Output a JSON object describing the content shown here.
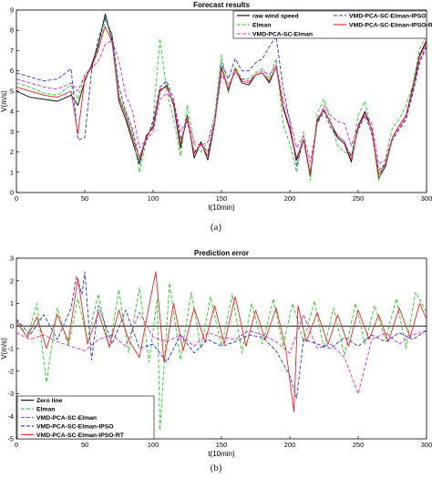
{
  "chart_data": [
    {
      "type": "line",
      "title": "Forecast results",
      "xlabel": "t(10min)",
      "ylabel": "V(m/s)",
      "xlim": [
        0,
        300
      ],
      "ylim": [
        0,
        9
      ],
      "xticks": [
        "0",
        "50",
        "100",
        "150",
        "200",
        "250",
        "300"
      ],
      "yticks": [
        "0",
        "1",
        "2",
        "3",
        "4",
        "5",
        "6",
        "7",
        "8",
        "9"
      ],
      "grid": false,
      "legend": "top-right",
      "series": [
        {
          "name": "raw wind speed",
          "color": "#000000",
          "dash": "solid",
          "x": [
            0,
            10,
            20,
            30,
            40,
            45,
            50,
            55,
            60,
            65,
            70,
            75,
            80,
            85,
            90,
            95,
            100,
            105,
            110,
            115,
            120,
            125,
            130,
            135,
            140,
            145,
            150,
            155,
            160,
            165,
            170,
            175,
            180,
            185,
            190,
            195,
            200,
            205,
            210,
            215,
            220,
            225,
            230,
            235,
            240,
            245,
            250,
            255,
            260,
            265,
            270,
            275,
            280,
            285,
            290,
            295,
            300
          ],
          "values": [
            5.0,
            4.7,
            4.6,
            4.5,
            4.8,
            4.3,
            5.5,
            6.3,
            7.3,
            8.8,
            7.5,
            4.5,
            3.6,
            2.5,
            1.4,
            2.8,
            3.2,
            5.0,
            5.3,
            4.3,
            2.2,
            3.8,
            1.7,
            2.5,
            1.6,
            3.4,
            6.2,
            5.0,
            6.1,
            5.4,
            5.3,
            5.8,
            5.9,
            5.4,
            6.2,
            4.2,
            3.1,
            1.6,
            2.6,
            0.8,
            3.6,
            4.1,
            3.4,
            2.7,
            2.4,
            1.5,
            3.3,
            4.0,
            3.1,
            0.7,
            1.3,
            2.7,
            3.3,
            3.8,
            5.2,
            6.8,
            7.5
          ]
        },
        {
          "name": "Elman",
          "color": "#22cc22",
          "dash": "4,2",
          "x": [
            0,
            10,
            20,
            30,
            40,
            45,
            50,
            55,
            60,
            65,
            70,
            75,
            80,
            85,
            90,
            95,
            100,
            105,
            110,
            115,
            120,
            125,
            130,
            135,
            140,
            145,
            150,
            155,
            160,
            165,
            170,
            175,
            180,
            185,
            190,
            195,
            200,
            205,
            210,
            215,
            220,
            225,
            230,
            235,
            240,
            245,
            250,
            255,
            260,
            265,
            270,
            275,
            280,
            285,
            290,
            295,
            300
          ],
          "values": [
            5.4,
            5.2,
            4.9,
            4.8,
            5.3,
            4.6,
            5.8,
            6.2,
            7.0,
            8.5,
            7.8,
            4.8,
            3.9,
            2.9,
            1.0,
            2.5,
            3.6,
            7.6,
            5.0,
            3.6,
            1.8,
            4.3,
            2.4,
            2.0,
            2.5,
            3.8,
            6.8,
            4.9,
            6.2,
            5.6,
            5.6,
            5.9,
            6.1,
            5.6,
            6.6,
            3.4,
            2.4,
            1.0,
            3.0,
            0.6,
            3.9,
            4.6,
            3.5,
            2.3,
            2.0,
            1.8,
            3.8,
            4.5,
            3.0,
            0.6,
            1.7,
            3.2,
            3.6,
            4.3,
            5.3,
            7.1,
            7.7
          ]
        },
        {
          "name": "VMD-PCA-SC-Elman",
          "color": "#dd22dd",
          "dash": "4,2",
          "x": [
            0,
            10,
            20,
            30,
            40,
            45,
            50,
            55,
            60,
            65,
            70,
            75,
            80,
            85,
            90,
            95,
            100,
            105,
            110,
            115,
            120,
            125,
            130,
            135,
            140,
            145,
            150,
            155,
            160,
            165,
            170,
            175,
            180,
            185,
            190,
            195,
            200,
            205,
            210,
            215,
            220,
            225,
            230,
            235,
            240,
            245,
            250,
            255,
            260,
            265,
            270,
            275,
            280,
            285,
            290,
            295,
            300
          ],
          "values": [
            5.6,
            5.4,
            5.2,
            5.1,
            5.4,
            5.0,
            5.8,
            6.1,
            6.5,
            7.3,
            7.5,
            6.5,
            4.8,
            4.0,
            2.2,
            2.6,
            3.0,
            4.6,
            4.9,
            4.5,
            3.0,
            3.6,
            2.5,
            2.3,
            2.5,
            3.5,
            5.8,
            5.3,
            5.9,
            5.6,
            5.5,
            5.8,
            6.0,
            5.8,
            6.3,
            4.6,
            3.6,
            2.2,
            2.8,
            1.5,
            3.4,
            4.3,
            3.8,
            3.5,
            3.4,
            2.3,
            3.3,
            3.9,
            3.4,
            1.4,
            1.6,
            2.7,
            3.2,
            3.7,
            5.0,
            6.5,
            7.3
          ]
        },
        {
          "name": "VMD-PCA-SC-Elman-IPSO",
          "color": "#2233cc",
          "dash": "4,2",
          "x": [
            0,
            10,
            20,
            30,
            40,
            45,
            50,
            55,
            60,
            65,
            70,
            75,
            80,
            85,
            90,
            95,
            100,
            105,
            110,
            115,
            120,
            125,
            130,
            135,
            140,
            145,
            150,
            155,
            160,
            165,
            170,
            175,
            180,
            185,
            190,
            195,
            200,
            205,
            210,
            215,
            220,
            225,
            230,
            235,
            240,
            245,
            250,
            255,
            260,
            265,
            270,
            275,
            280,
            285,
            290,
            295,
            300
          ],
          "values": [
            5.9,
            5.7,
            5.5,
            5.6,
            6.1,
            2.6,
            2.7,
            6.0,
            7.6,
            8.6,
            7.8,
            5.2,
            4.0,
            3.1,
            1.6,
            2.6,
            3.5,
            5.2,
            5.5,
            4.6,
            2.6,
            3.5,
            2.0,
            2.4,
            2.0,
            3.5,
            6.4,
            5.6,
            6.6,
            6.0,
            6.0,
            6.4,
            6.6,
            7.2,
            7.7,
            5.2,
            3.5,
            1.3,
            2.6,
            1.0,
            3.4,
            4.0,
            3.2,
            2.7,
            2.4,
            1.8,
            3.1,
            3.8,
            2.9,
            1.1,
            1.4,
            2.6,
            3.1,
            3.6,
            4.9,
            6.4,
            7.2
          ]
        },
        {
          "name": "VMD-PCA-SC-Elman-IPSO-RT",
          "color": "#ee2222",
          "dash": "solid",
          "x": [
            0,
            10,
            20,
            30,
            40,
            45,
            50,
            55,
            60,
            65,
            70,
            75,
            80,
            85,
            90,
            95,
            100,
            105,
            110,
            115,
            120,
            125,
            130,
            135,
            140,
            145,
            150,
            155,
            160,
            165,
            170,
            175,
            180,
            185,
            190,
            195,
            200,
            205,
            210,
            215,
            220,
            225,
            230,
            235,
            240,
            245,
            250,
            255,
            260,
            265,
            270,
            275,
            280,
            285,
            290,
            295,
            300
          ],
          "values": [
            5.2,
            5.0,
            4.8,
            4.7,
            5.0,
            2.9,
            5.6,
            6.2,
            7.1,
            8.2,
            7.4,
            4.7,
            3.8,
            2.7,
            1.7,
            2.7,
            3.3,
            5.1,
            5.2,
            4.4,
            2.4,
            3.7,
            1.9,
            2.4,
            1.8,
            3.4,
            6.1,
            5.1,
            6.1,
            5.5,
            5.4,
            5.8,
            5.9,
            5.5,
            6.2,
            4.3,
            3.2,
            1.7,
            2.6,
            0.9,
            3.5,
            4.1,
            3.4,
            2.8,
            2.5,
            1.6,
            3.2,
            3.9,
            3.1,
            0.9,
            1.4,
            2.7,
            3.3,
            3.8,
            5.1,
            6.7,
            7.4
          ]
        }
      ],
      "caption": "(a)"
    },
    {
      "type": "line",
      "title": "Prediction error",
      "xlabel": "t(10min)",
      "ylabel": "V(m/s)",
      "xlim": [
        0,
        300
      ],
      "ylim": [
        -5,
        3
      ],
      "xticks": [
        "0",
        "50",
        "100",
        "150",
        "200",
        "250",
        "300"
      ],
      "yticks": [
        "-5",
        "-4",
        "-3",
        "-2",
        "-1",
        "0",
        "1",
        "2",
        "3"
      ],
      "grid": false,
      "legend": "bottom-left",
      "series": [
        {
          "name": "Zero line",
          "color": "#000000",
          "dash": "solid",
          "x": [
            0,
            300
          ],
          "values": [
            0,
            0
          ]
        },
        {
          "name": "Elman",
          "color": "#22cc22",
          "dash": "4,2",
          "x": [
            0,
            8,
            15,
            22,
            30,
            38,
            45,
            52,
            60,
            68,
            75,
            82,
            90,
            97,
            103,
            105,
            112,
            120,
            128,
            135,
            142,
            150,
            158,
            165,
            172,
            180,
            188,
            195,
            202,
            210,
            218,
            225,
            232,
            240,
            248,
            255,
            262,
            270,
            278,
            285,
            292,
            300
          ],
          "values": [
            0.3,
            -0.5,
            1.0,
            -2.5,
            0.8,
            -0.9,
            1.2,
            -0.6,
            1.4,
            -1.0,
            1.6,
            -1.2,
            1.7,
            -1.6,
            1.2,
            -4.6,
            1.9,
            -1.5,
            1.5,
            -1.0,
            1.3,
            -0.9,
            1.4,
            -1.2,
            1.0,
            -0.8,
            1.2,
            -0.9,
            1.0,
            -0.7,
            1.1,
            -1.0,
            0.8,
            -1.3,
            1.0,
            -0.8,
            0.9,
            -0.6,
            1.2,
            -1.0,
            1.5,
            0.6
          ]
        },
        {
          "name": "VMD-PCA-SC-Elman",
          "color": "#dd22dd",
          "dash": "4,2",
          "x": [
            0,
            10,
            20,
            30,
            40,
            50,
            60,
            70,
            80,
            90,
            100,
            110,
            120,
            130,
            140,
            150,
            160,
            170,
            180,
            190,
            200,
            210,
            220,
            230,
            240,
            250,
            260,
            270,
            280,
            290,
            300
          ],
          "values": [
            -0.3,
            -0.6,
            -0.4,
            -0.7,
            -0.9,
            -1.1,
            -0.6,
            -0.4,
            -0.9,
            0.6,
            -0.5,
            -0.7,
            -0.4,
            -0.9,
            -0.3,
            -0.5,
            -0.6,
            -0.2,
            -0.4,
            -0.7,
            -1.2,
            0.5,
            -1.0,
            -0.8,
            -1.4,
            -3.0,
            -0.6,
            -0.3,
            -0.8,
            -0.4,
            -0.2
          ]
        },
        {
          "name": "VMD-PCA-SC-Elman-IPSO",
          "color": "#2233cc",
          "dash": "4,2",
          "x": [
            0,
            10,
            20,
            30,
            40,
            44,
            48,
            50,
            55,
            60,
            70,
            80,
            90,
            100,
            110,
            120,
            130,
            140,
            150,
            160,
            170,
            180,
            190,
            200,
            205,
            210,
            220,
            230,
            240,
            250,
            260,
            270,
            280,
            290,
            300
          ],
          "values": [
            0.3,
            -0.4,
            0.5,
            -0.6,
            0.8,
            2.2,
            1.4,
            2.4,
            -1.5,
            0.9,
            -0.8,
            0.7,
            -1.0,
            -0.8,
            -1.6,
            -0.4,
            -1.2,
            -0.6,
            -0.9,
            -0.7,
            -0.4,
            -0.5,
            -1.1,
            -2.2,
            -3.2,
            -0.6,
            -0.8,
            -1.0,
            -0.5,
            -0.9,
            -0.4,
            -0.7,
            -0.3,
            -0.6,
            -0.2
          ]
        },
        {
          "name": "VMD-PCA-SC-Elman-IPSO-RT",
          "color": "#ee2222",
          "dash": "solid",
          "x": [
            0,
            8,
            15,
            22,
            30,
            38,
            45,
            52,
            60,
            68,
            75,
            82,
            90,
            97,
            102,
            108,
            115,
            122,
            130,
            138,
            145,
            152,
            160,
            168,
            175,
            182,
            190,
            197,
            203,
            206,
            212,
            220,
            228,
            235,
            243,
            250,
            258,
            265,
            272,
            280,
            288,
            295,
            300
          ],
          "values": [
            0.2,
            -0.5,
            0.4,
            -1.0,
            0.5,
            -0.7,
            2.1,
            -0.8,
            0.6,
            -0.9,
            0.7,
            -0.6,
            -1.4,
            0.9,
            2.4,
            -1.6,
            1.0,
            -1.1,
            0.8,
            -0.7,
            0.9,
            -0.8,
            1.3,
            -0.9,
            0.7,
            -0.6,
            0.8,
            -1.0,
            -3.8,
            0.9,
            -0.7,
            0.6,
            -0.8,
            0.5,
            -0.9,
            0.7,
            -0.6,
            0.5,
            -0.7,
            0.8,
            -0.5,
            1.0,
            0.3
          ]
        }
      ],
      "caption": "(b)"
    }
  ]
}
